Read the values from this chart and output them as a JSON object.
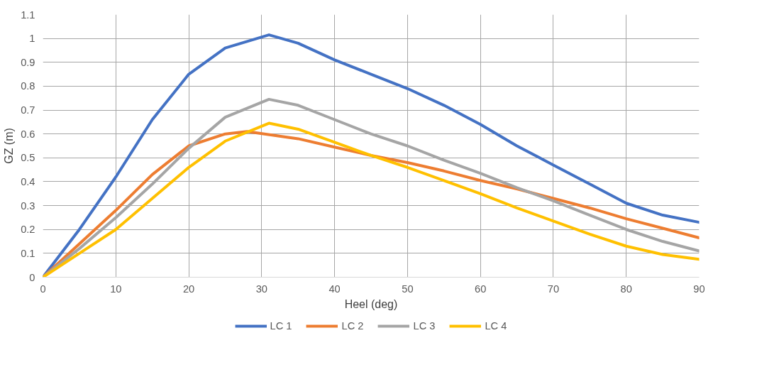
{
  "chart_data": {
    "type": "line",
    "xlabel": "Heel (deg)",
    "ylabel": "GZ (m)",
    "xlim": [
      0,
      90
    ],
    "xticks": [
      0,
      10,
      20,
      30,
      40,
      50,
      60,
      70,
      80,
      90
    ],
    "ylim": [
      0,
      1.1
    ],
    "yticks": [
      0,
      0.1,
      0.2,
      0.3,
      0.4,
      0.5,
      0.6,
      0.7,
      0.8,
      0.9,
      1,
      1.1
    ],
    "grid": true,
    "legend": "bottom",
    "marker": "none",
    "line_style": "solid",
    "series": [
      {
        "name": "LC 1",
        "color": "#4472c4",
        "x": [
          0,
          5,
          10,
          15,
          20,
          25,
          31,
          35,
          40,
          45,
          50,
          55,
          60,
          65,
          70,
          75,
          80,
          85,
          90
        ],
        "values": [
          0,
          0.2,
          0.42,
          0.66,
          0.85,
          0.96,
          1.015,
          0.98,
          0.91,
          0.85,
          0.79,
          0.72,
          0.64,
          0.55,
          0.47,
          0.39,
          0.31,
          0.26,
          0.23
        ]
      },
      {
        "name": "LC 2",
        "color": "#ed7d31",
        "x": [
          0,
          5,
          10,
          15,
          20,
          25,
          28,
          35,
          40,
          45,
          50,
          55,
          60,
          65,
          70,
          75,
          80,
          85,
          90
        ],
        "values": [
          0,
          0.14,
          0.28,
          0.43,
          0.55,
          0.6,
          0.61,
          0.58,
          0.545,
          0.51,
          0.48,
          0.445,
          0.405,
          0.37,
          0.33,
          0.29,
          0.245,
          0.205,
          0.165
        ]
      },
      {
        "name": "LC 3",
        "color": "#a5a5a5",
        "x": [
          0,
          5,
          10,
          15,
          20,
          25,
          31,
          35,
          40,
          45,
          50,
          55,
          60,
          65,
          70,
          75,
          80,
          85,
          90
        ],
        "values": [
          0,
          0.12,
          0.25,
          0.39,
          0.54,
          0.67,
          0.745,
          0.72,
          0.66,
          0.6,
          0.55,
          0.49,
          0.435,
          0.375,
          0.32,
          0.26,
          0.2,
          0.15,
          0.11
        ]
      },
      {
        "name": "LC 4",
        "color": "#ffc000",
        "x": [
          0,
          5,
          10,
          15,
          20,
          25,
          31,
          35,
          40,
          45,
          50,
          55,
          60,
          65,
          70,
          75,
          80,
          85,
          90
        ],
        "values": [
          0,
          0.1,
          0.2,
          0.33,
          0.46,
          0.57,
          0.645,
          0.62,
          0.565,
          0.51,
          0.46,
          0.405,
          0.35,
          0.29,
          0.235,
          0.18,
          0.13,
          0.095,
          0.075
        ]
      }
    ]
  }
}
